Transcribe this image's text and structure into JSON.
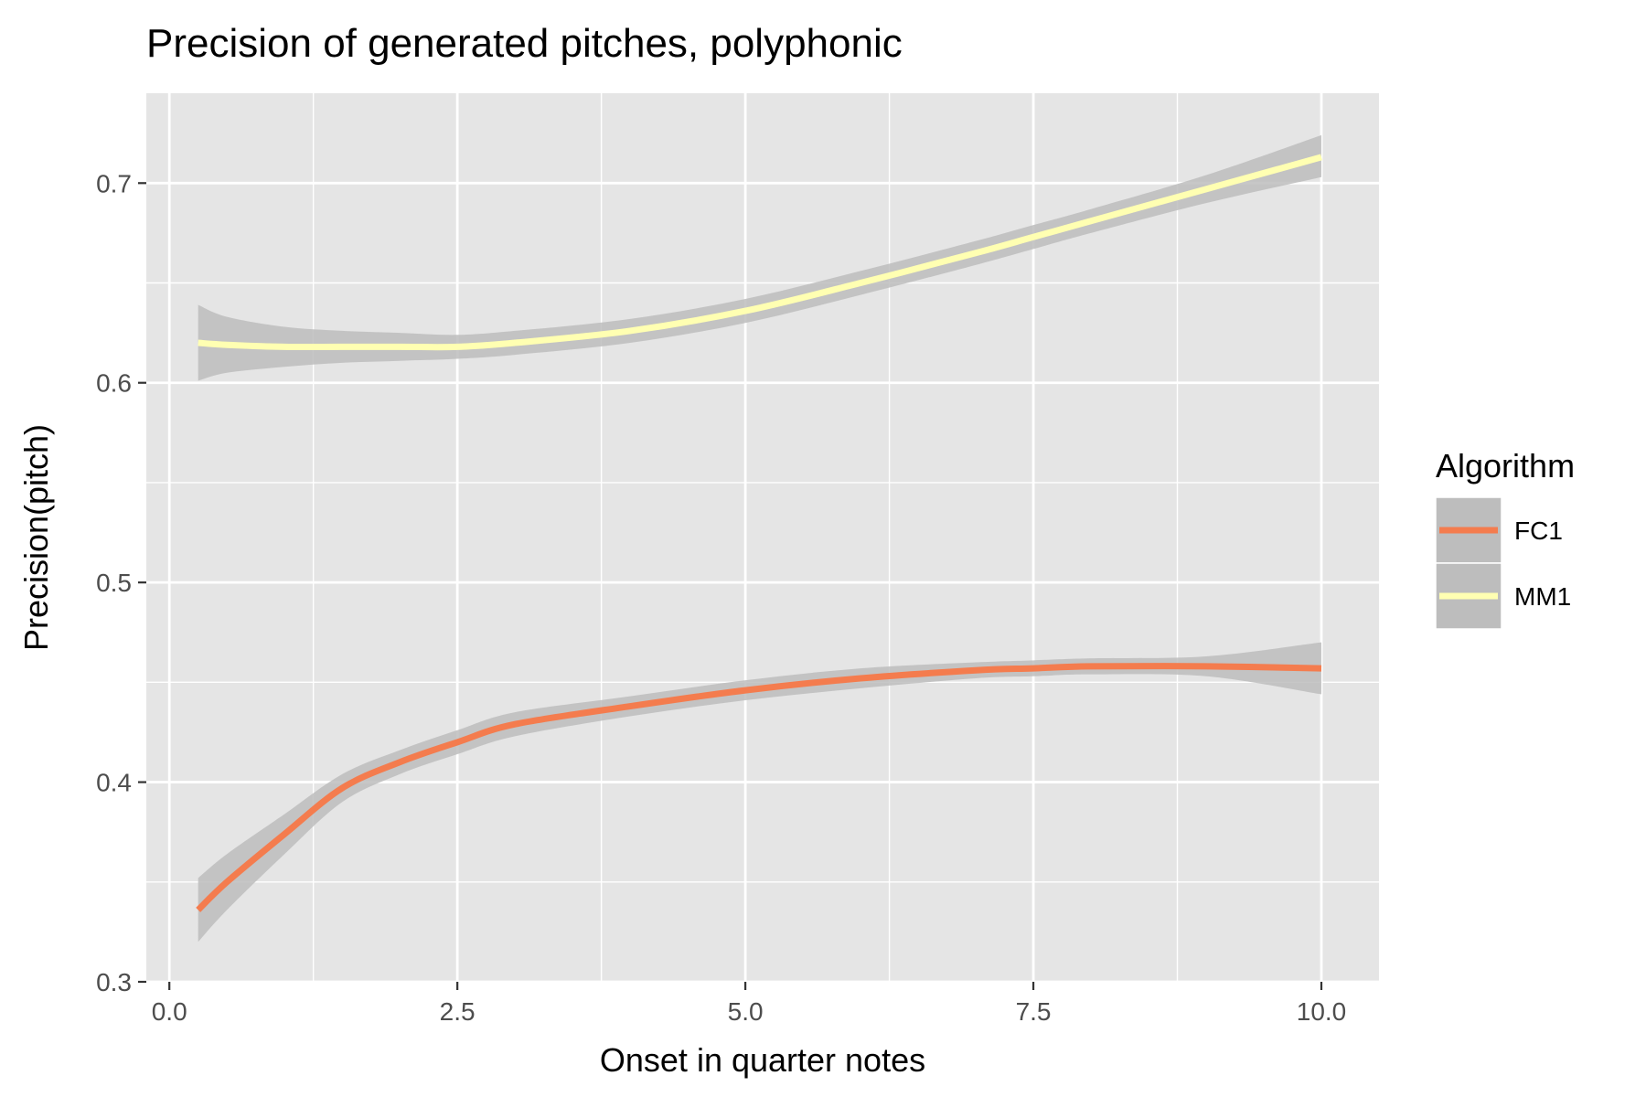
{
  "chart_data": {
    "type": "line",
    "title": "Precision of generated pitches, polyphonic",
    "xlabel": "Onset in quarter notes",
    "ylabel": "Precision(pitch)",
    "xlim": [
      -0.2,
      10.5
    ],
    "ylim": [
      0.3,
      0.745
    ],
    "x_ticks": [
      0,
      2.5,
      5,
      7.5,
      10
    ],
    "x_tick_labels": [
      "0.0",
      "2.5",
      "5.0",
      "7.5",
      "10.0"
    ],
    "y_ticks": [
      0.3,
      0.4,
      0.5,
      0.6,
      0.7
    ],
    "y_tick_labels": [
      "0.3",
      "0.4",
      "0.5",
      "0.6",
      "0.7"
    ],
    "grid": true,
    "legend": {
      "title": "Algorithm",
      "position": "right"
    },
    "series": [
      {
        "name": "FC1",
        "color": "#f47c4e",
        "x": [
          0.25,
          0.5,
          1.0,
          1.5,
          2.0,
          2.5,
          3.0,
          4.0,
          5.0,
          6.0,
          7.0,
          7.5,
          8.0,
          9.0,
          10.0
        ],
        "y": [
          0.336,
          0.35,
          0.374,
          0.397,
          0.41,
          0.42,
          0.429,
          0.438,
          0.446,
          0.452,
          0.456,
          0.457,
          0.458,
          0.458,
          0.457
        ],
        "lower": [
          0.32,
          0.336,
          0.364,
          0.39,
          0.404,
          0.414,
          0.423,
          0.433,
          0.441,
          0.447,
          0.452,
          0.453,
          0.454,
          0.453,
          0.444
        ],
        "upper": [
          0.352,
          0.364,
          0.384,
          0.404,
          0.416,
          0.426,
          0.435,
          0.443,
          0.451,
          0.457,
          0.46,
          0.461,
          0.462,
          0.463,
          0.47
        ]
      },
      {
        "name": "MM1",
        "color": "#ffffb2",
        "x": [
          0.25,
          0.5,
          1.0,
          1.5,
          2.0,
          2.5,
          3.0,
          4.0,
          5.0,
          6.0,
          7.0,
          7.5,
          8.0,
          9.0,
          10.0
        ],
        "y": [
          0.62,
          0.619,
          0.618,
          0.618,
          0.618,
          0.618,
          0.62,
          0.626,
          0.636,
          0.65,
          0.665,
          0.673,
          0.681,
          0.697,
          0.713
        ],
        "lower": [
          0.601,
          0.605,
          0.608,
          0.61,
          0.611,
          0.612,
          0.614,
          0.62,
          0.63,
          0.644,
          0.659,
          0.667,
          0.675,
          0.69,
          0.703
        ],
        "upper": [
          0.639,
          0.633,
          0.628,
          0.626,
          0.625,
          0.624,
          0.626,
          0.632,
          0.642,
          0.656,
          0.671,
          0.679,
          0.687,
          0.704,
          0.724
        ]
      }
    ]
  },
  "colors": {
    "panel_background": "#e5e5e5",
    "grid": "#ffffff",
    "ribbon": "#bdbdbd"
  }
}
